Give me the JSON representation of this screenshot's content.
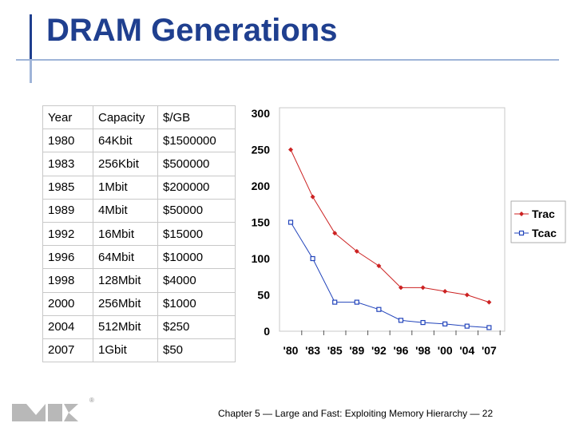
{
  "title": "DRAM Generations",
  "table": {
    "headers": [
      "Year",
      "Capacity",
      "$/GB"
    ],
    "rows": [
      [
        "1980",
        "64Kbit",
        "$1500000"
      ],
      [
        "1983",
        "256Kbit",
        "$500000"
      ],
      [
        "1985",
        "1Mbit",
        "$200000"
      ],
      [
        "1989",
        "4Mbit",
        "$50000"
      ],
      [
        "1992",
        "16Mbit",
        "$15000"
      ],
      [
        "1996",
        "64Mbit",
        "$10000"
      ],
      [
        "1998",
        "128Mbit",
        "$4000"
      ],
      [
        "2000",
        "256Mbit",
        "$1000"
      ],
      [
        "2004",
        "512Mbit",
        "$250"
      ],
      [
        "2007",
        "1Gbit",
        "$50"
      ]
    ]
  },
  "chart_data": {
    "type": "line",
    "categories": [
      "'80",
      "'83",
      "'85",
      "'89",
      "'92",
      "'96",
      "'98",
      "'00",
      "'04",
      "'07"
    ],
    "series": [
      {
        "name": "Trac",
        "values": [
          250,
          185,
          135,
          110,
          90,
          60,
          60,
          55,
          50,
          40
        ],
        "color": "#cc2222",
        "marker": "diamond"
      },
      {
        "name": "Tcac",
        "values": [
          150,
          100,
          40,
          40,
          30,
          15,
          12,
          10,
          7,
          5
        ],
        "color": "#2244bb",
        "marker": "square"
      }
    ],
    "yticks": [
      0,
      50,
      100,
      150,
      200,
      250,
      300
    ],
    "ylim": [
      0,
      300
    ],
    "grid": false,
    "legend": "right"
  },
  "footer": "Chapter 5 — Large and Fast: Exploiting Memory Hierarchy — 22",
  "logo": {
    "text": "MK",
    "mark": "®"
  }
}
